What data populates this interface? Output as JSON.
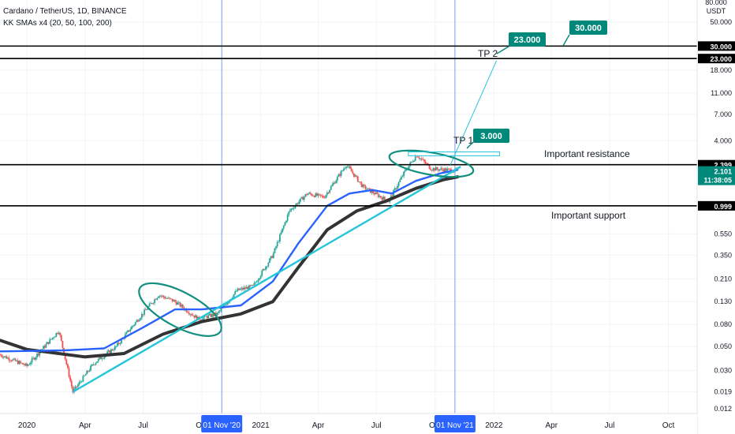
{
  "header": {
    "symbol": "Cardano / TetherUS, 1D, BINANCE",
    "indicator": "KK SMAs x4 (20, 50, 100, 200)"
  },
  "price_scale": {
    "unit_line1": "80.000",
    "unit_line2": "USDT",
    "ticks": [
      "50.000",
      "30.000",
      "23.000",
      "18.000",
      "11.000",
      "7.000",
      "4.000",
      "2.399",
      "2.101",
      "11:38:05",
      "0.999",
      "0.550",
      "0.350",
      "0.210",
      "0.130",
      "0.080",
      "0.050",
      "0.030",
      "0.019",
      "0.012"
    ]
  },
  "time_scale": {
    "labels": [
      "2020",
      "Apr",
      "Jul",
      "Oct",
      "2021",
      "Apr",
      "Jul",
      "Oct",
      "2022",
      "Apr",
      "Jul",
      "Oct"
    ],
    "crosshair_labels": [
      "01 Nov '20",
      "01 Nov '21"
    ]
  },
  "annotations": {
    "tp1_label": "TP 1",
    "tp1_value": "3.000",
    "tp2_label": "TP 2",
    "tp2_value": "23.000",
    "tp3_value": "30.000",
    "resistance_text": "Important resistance",
    "support_text": "Important support",
    "current_price": "2.101",
    "countdown": "11:38:05",
    "resistance_value": "2.399",
    "support_value": "0.999",
    "level_30": "30.000",
    "level_23": "23.000"
  },
  "colors": {
    "up": "#26a69a",
    "down": "#ef5350",
    "sma_blue": "#2962ff",
    "sma_black": "#333333",
    "trendline": "#26c6da",
    "ellipse": "#138f7e",
    "label_bg": "#00897b"
  },
  "chart_data": {
    "type": "candlestick",
    "scale": "log",
    "ylim": [
      0.012,
      80
    ],
    "x_range": [
      "2019-11-20",
      "2022-11-15"
    ],
    "price_anchors": [
      {
        "date": "2019-11-20",
        "price": 0.042
      },
      {
        "date": "2020-01-01",
        "price": 0.033
      },
      {
        "date": "2020-02-20",
        "price": 0.07
      },
      {
        "date": "2020-03-13",
        "price": 0.019
      },
      {
        "date": "2020-04-15",
        "price": 0.035
      },
      {
        "date": "2020-05-20",
        "price": 0.05
      },
      {
        "date": "2020-06-20",
        "price": 0.085
      },
      {
        "date": "2020-07-25",
        "price": 0.15
      },
      {
        "date": "2020-08-20",
        "price": 0.13
      },
      {
        "date": "2020-09-25",
        "price": 0.09
      },
      {
        "date": "2020-10-25",
        "price": 0.1
      },
      {
        "date": "2020-11-25",
        "price": 0.165
      },
      {
        "date": "2020-12-20",
        "price": 0.18
      },
      {
        "date": "2021-01-20",
        "price": 0.35
      },
      {
        "date": "2021-02-15",
        "price": 0.9
      },
      {
        "date": "2021-03-15",
        "price": 1.3
      },
      {
        "date": "2021-04-10",
        "price": 1.2
      },
      {
        "date": "2021-05-15",
        "price": 2.4
      },
      {
        "date": "2021-06-10",
        "price": 1.5
      },
      {
        "date": "2021-07-20",
        "price": 1.1
      },
      {
        "date": "2021-08-15",
        "price": 2.1
      },
      {
        "date": "2021-09-02",
        "price": 2.95
      },
      {
        "date": "2021-09-25",
        "price": 2.2
      },
      {
        "date": "2021-10-20",
        "price": 2.15
      },
      {
        "date": "2021-11-05",
        "price": 2.101
      }
    ],
    "sma_blue": [
      {
        "date": "2019-11-20",
        "price": 0.045
      },
      {
        "date": "2020-03-01",
        "price": 0.046
      },
      {
        "date": "2020-05-01",
        "price": 0.048
      },
      {
        "date": "2020-07-01",
        "price": 0.075
      },
      {
        "date": "2020-08-20",
        "price": 0.11
      },
      {
        "date": "2020-10-01",
        "price": 0.11
      },
      {
        "date": "2020-12-01",
        "price": 0.12
      },
      {
        "date": "2021-01-20",
        "price": 0.2
      },
      {
        "date": "2021-03-01",
        "price": 0.45
      },
      {
        "date": "2021-04-15",
        "price": 1.0
      },
      {
        "date": "2021-05-20",
        "price": 1.3
      },
      {
        "date": "2021-06-25",
        "price": 1.4
      },
      {
        "date": "2021-07-25",
        "price": 1.3
      },
      {
        "date": "2021-09-01",
        "price": 1.7
      },
      {
        "date": "2021-10-10",
        "price": 2.0
      },
      {
        "date": "2021-11-05",
        "price": 2.15
      }
    ],
    "sma_black": [
      {
        "date": "2019-11-20",
        "price": 0.057
      },
      {
        "date": "2020-01-01",
        "price": 0.047
      },
      {
        "date": "2020-04-01",
        "price": 0.04
      },
      {
        "date": "2020-06-01",
        "price": 0.043
      },
      {
        "date": "2020-08-01",
        "price": 0.065
      },
      {
        "date": "2020-10-01",
        "price": 0.085
      },
      {
        "date": "2020-12-01",
        "price": 0.1
      },
      {
        "date": "2021-01-20",
        "price": 0.13
      },
      {
        "date": "2021-03-01",
        "price": 0.27
      },
      {
        "date": "2021-04-15",
        "price": 0.6
      },
      {
        "date": "2021-06-01",
        "price": 0.9
      },
      {
        "date": "2021-07-15",
        "price": 1.1
      },
      {
        "date": "2021-09-01",
        "price": 1.45
      },
      {
        "date": "2021-10-15",
        "price": 1.75
      },
      {
        "date": "2021-11-05",
        "price": 1.85
      }
    ],
    "horizontal_levels": [
      30.0,
      23.0,
      2.399,
      0.999
    ],
    "trendline": [
      {
        "date": "2020-03-13",
        "price": 0.019
      },
      {
        "date": "2021-11-10",
        "price": 2.3
      }
    ],
    "target_path": [
      {
        "date": "2021-10-25",
        "price": 2.4
      },
      {
        "date": "2022-01-05",
        "price": 22.0
      }
    ]
  }
}
